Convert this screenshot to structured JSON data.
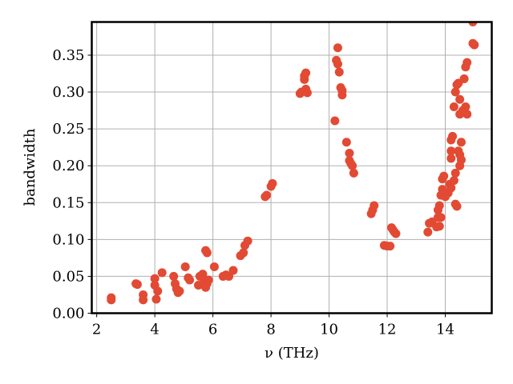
{
  "chart_data": {
    "type": "scatter",
    "title": "",
    "xlabel": "ν (THz)",
    "ylabel": "bandwidth",
    "xlim": [
      1.83,
      15.6
    ],
    "ylim": [
      0.0,
      0.395
    ],
    "grid": true,
    "legend": null,
    "marker_color": "#E24A33",
    "x_ticks": [
      2,
      4,
      6,
      8,
      10,
      12,
      14
    ],
    "x_tick_labels": [
      "2",
      "4",
      "6",
      "8",
      "10",
      "12",
      "14"
    ],
    "y_ticks": [
      0.0,
      0.05,
      0.1,
      0.15,
      0.2,
      0.25,
      0.3,
      0.35
    ],
    "y_tick_labels": [
      "0.00",
      "0.05",
      "0.10",
      "0.15",
      "0.20",
      "0.25",
      "0.30",
      "0.35"
    ],
    "series": [
      {
        "name": "bandwidth",
        "points": [
          [
            2.5,
            0.018
          ],
          [
            2.5,
            0.021
          ],
          [
            3.35,
            0.04
          ],
          [
            3.4,
            0.039
          ],
          [
            3.6,
            0.018
          ],
          [
            3.6,
            0.025
          ],
          [
            4.0,
            0.047
          ],
          [
            4.0,
            0.038
          ],
          [
            4.05,
            0.019
          ],
          [
            4.1,
            0.03
          ],
          [
            4.25,
            0.055
          ],
          [
            4.65,
            0.05
          ],
          [
            4.7,
            0.04
          ],
          [
            4.75,
            0.033
          ],
          [
            4.85,
            0.03
          ],
          [
            4.8,
            0.028
          ],
          [
            5.05,
            0.063
          ],
          [
            5.15,
            0.048
          ],
          [
            5.2,
            0.045
          ],
          [
            5.5,
            0.038
          ],
          [
            5.55,
            0.05
          ],
          [
            5.65,
            0.053
          ],
          [
            5.7,
            0.042
          ],
          [
            5.75,
            0.035
          ],
          [
            5.8,
            0.04
          ],
          [
            5.85,
            0.045
          ],
          [
            5.75,
            0.085
          ],
          [
            5.8,
            0.082
          ],
          [
            6.05,
            0.063
          ],
          [
            6.35,
            0.05
          ],
          [
            6.45,
            0.052
          ],
          [
            6.55,
            0.05
          ],
          [
            6.7,
            0.058
          ],
          [
            6.95,
            0.078
          ],
          [
            7.05,
            0.082
          ],
          [
            7.1,
            0.092
          ],
          [
            7.2,
            0.098
          ],
          [
            7.8,
            0.158
          ],
          [
            7.85,
            0.16
          ],
          [
            8.0,
            0.172
          ],
          [
            8.05,
            0.176
          ],
          [
            9.0,
            0.298
          ],
          [
            9.05,
            0.3
          ],
          [
            9.15,
            0.317
          ],
          [
            9.15,
            0.322
          ],
          [
            9.2,
            0.326
          ],
          [
            9.25,
            0.299
          ],
          [
            9.2,
            0.304
          ],
          [
            10.2,
            0.261
          ],
          [
            10.3,
            0.36
          ],
          [
            10.25,
            0.343
          ],
          [
            10.3,
            0.338
          ],
          [
            10.35,
            0.327
          ],
          [
            10.4,
            0.306
          ],
          [
            10.45,
            0.302
          ],
          [
            10.45,
            0.296
          ],
          [
            10.6,
            0.232
          ],
          [
            10.7,
            0.217
          ],
          [
            10.7,
            0.207
          ],
          [
            10.75,
            0.203
          ],
          [
            10.8,
            0.2
          ],
          [
            10.85,
            0.19
          ],
          [
            11.45,
            0.135
          ],
          [
            11.5,
            0.14
          ],
          [
            11.55,
            0.146
          ],
          [
            11.9,
            0.092
          ],
          [
            12.0,
            0.091
          ],
          [
            12.1,
            0.091
          ],
          [
            12.15,
            0.116
          ],
          [
            12.2,
            0.113
          ],
          [
            12.25,
            0.11
          ],
          [
            12.3,
            0.108
          ],
          [
            13.4,
            0.11
          ],
          [
            13.45,
            0.122
          ],
          [
            13.55,
            0.124
          ],
          [
            13.7,
            0.117
          ],
          [
            13.75,
            0.13
          ],
          [
            13.75,
            0.14
          ],
          [
            13.8,
            0.146
          ],
          [
            13.8,
            0.118
          ],
          [
            13.85,
            0.13
          ],
          [
            13.85,
            0.16
          ],
          [
            13.9,
            0.168
          ],
          [
            13.9,
            0.182
          ],
          [
            13.95,
            0.186
          ],
          [
            14.0,
            0.158
          ],
          [
            14.1,
            0.163
          ],
          [
            14.15,
            0.175
          ],
          [
            14.2,
            0.17
          ],
          [
            14.2,
            0.21
          ],
          [
            14.2,
            0.22
          ],
          [
            14.2,
            0.235
          ],
          [
            14.25,
            0.24
          ],
          [
            14.3,
            0.18
          ],
          [
            14.35,
            0.19
          ],
          [
            14.35,
            0.148
          ],
          [
            14.4,
            0.145
          ],
          [
            14.45,
            0.22
          ],
          [
            14.5,
            0.215
          ],
          [
            14.5,
            0.2
          ],
          [
            14.55,
            0.208
          ],
          [
            14.55,
            0.232
          ],
          [
            14.3,
            0.28
          ],
          [
            14.35,
            0.3
          ],
          [
            14.4,
            0.31
          ],
          [
            14.45,
            0.312
          ],
          [
            14.5,
            0.29
          ],
          [
            14.5,
            0.27
          ],
          [
            14.6,
            0.275
          ],
          [
            14.7,
            0.28
          ],
          [
            14.75,
            0.27
          ],
          [
            14.65,
            0.318
          ],
          [
            14.7,
            0.334
          ],
          [
            14.75,
            0.34
          ],
          [
            14.95,
            0.366
          ],
          [
            15.0,
            0.364
          ],
          [
            14.95,
            0.395
          ]
        ]
      }
    ]
  }
}
